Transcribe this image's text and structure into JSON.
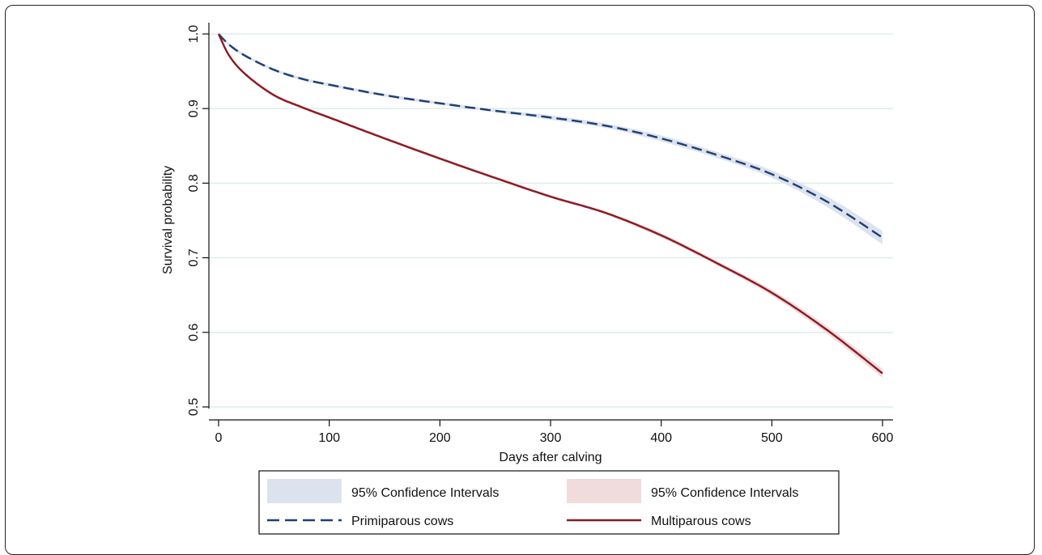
{
  "chart_data": {
    "type": "line",
    "title": "",
    "xlabel": "Days after calving",
    "ylabel": "Survival probability",
    "xlim": [
      0,
      600
    ],
    "ylim": [
      0.5,
      1.0
    ],
    "x_ticks": [
      0,
      100,
      200,
      300,
      400,
      500,
      600
    ],
    "y_ticks": [
      0.5,
      0.6,
      0.7,
      0.8,
      0.9,
      1.0
    ],
    "x_tick_labels": [
      "0",
      "100",
      "200",
      "300",
      "400",
      "500",
      "600"
    ],
    "y_tick_labels": [
      "0.5",
      "0.6",
      "0.7",
      "0.8",
      "0.9",
      "1.0"
    ],
    "grid": "horizontal",
    "legend_position": "bottom",
    "series": [
      {
        "name": "Primiparous cows",
        "style": "dashed",
        "color": "#1f3f73",
        "ci_label": "95% Confidence Intervals",
        "ci_color": "#dde3ee",
        "x": [
          0,
          10,
          25,
          50,
          75,
          100,
          150,
          200,
          250,
          300,
          350,
          400,
          450,
          500,
          550,
          600
        ],
        "y": [
          1.0,
          0.985,
          0.97,
          0.952,
          0.94,
          0.932,
          0.918,
          0.907,
          0.897,
          0.888,
          0.877,
          0.86,
          0.838,
          0.812,
          0.775,
          0.727
        ],
        "ci_halfwidth": [
          0.0,
          0.002,
          0.002,
          0.002,
          0.002,
          0.002,
          0.002,
          0.002,
          0.002,
          0.003,
          0.003,
          0.004,
          0.004,
          0.005,
          0.007,
          0.009
        ]
      },
      {
        "name": "Multiparous cows",
        "style": "solid",
        "color": "#8b1a24",
        "ci_label": "95% Confidence Intervals",
        "ci_color": "#f0dcdc",
        "x": [
          0,
          10,
          25,
          50,
          75,
          100,
          150,
          200,
          250,
          300,
          350,
          400,
          450,
          500,
          550,
          600
        ],
        "y": [
          1.0,
          0.97,
          0.945,
          0.918,
          0.902,
          0.888,
          0.86,
          0.833,
          0.807,
          0.782,
          0.76,
          0.73,
          0.693,
          0.653,
          0.603,
          0.545
        ],
        "ci_halfwidth": [
          0.0,
          0.002,
          0.002,
          0.002,
          0.002,
          0.002,
          0.002,
          0.002,
          0.002,
          0.002,
          0.002,
          0.003,
          0.003,
          0.004,
          0.005,
          0.006
        ]
      }
    ],
    "legend": {
      "rows": [
        [
          {
            "kind": "band",
            "series": 0,
            "label": "95% Confidence Intervals"
          },
          {
            "kind": "band",
            "series": 1,
            "label": "95% Confidence Intervals"
          }
        ],
        [
          {
            "kind": "line",
            "series": 0,
            "label": "Primiparous cows"
          },
          {
            "kind": "line",
            "series": 1,
            "label": "Multiparous cows"
          }
        ]
      ]
    },
    "colors": {
      "axis": "#111111",
      "grid": "#dfeeee"
    }
  }
}
